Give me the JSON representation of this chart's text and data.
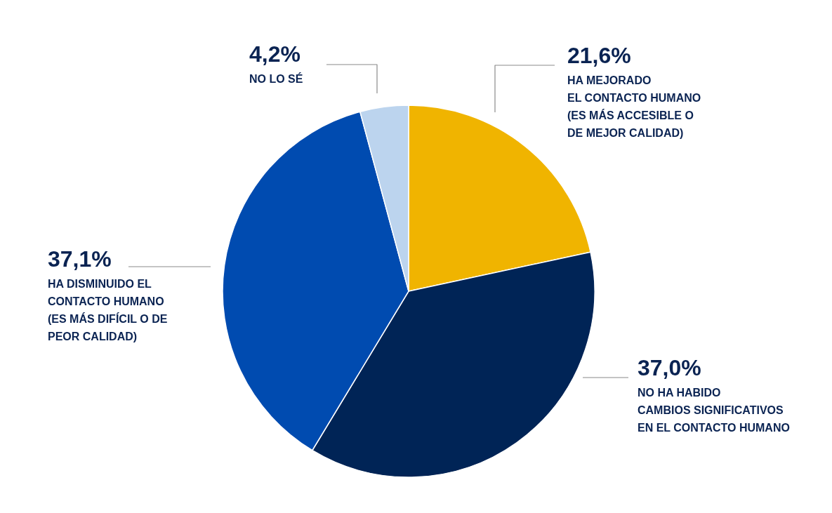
{
  "chart_data": {
    "type": "pie",
    "categories": [
      "HA MEJORADO\nEL CONTACTO HUMANO\n(ES MÁS ACCESIBLE O\nDE MEJOR CALIDAD)",
      "NO HA HABIDO\nCAMBIOS SIGNIFICATIVOS\nEN EL CONTACTO HUMANO",
      "HA DISMINUIDO EL\nCONTACTO HUMANO\n(ES MÁS DIFÍCIL O DE\nPEOR CALIDAD)",
      "NO LO SÉ"
    ],
    "values": [
      21.6,
      37.0,
      37.1,
      4.2
    ],
    "colors": [
      "#f0b400",
      "#002456",
      "#004bb0",
      "#bcd4ee"
    ],
    "value_labels": [
      "21,6%",
      "37,0%",
      "37,1%",
      "4,2%"
    ]
  }
}
